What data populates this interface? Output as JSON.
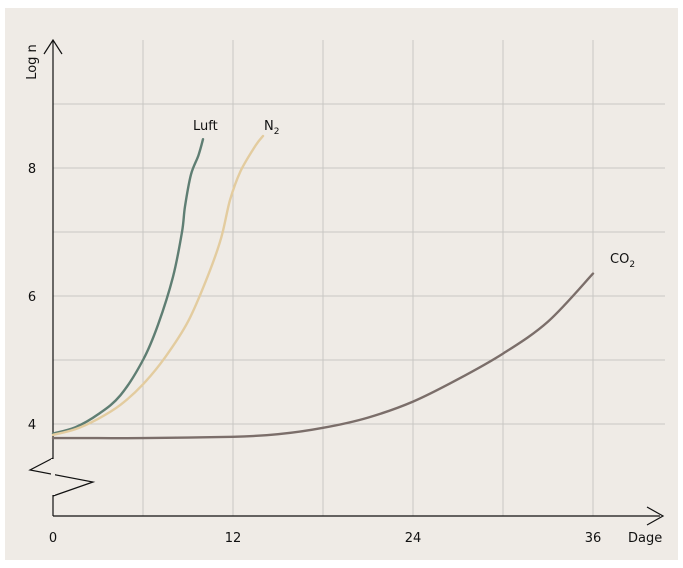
{
  "chart_data": {
    "type": "line",
    "title": "",
    "xlabel": "Dage",
    "ylabel": "Log n",
    "xlim": [
      0,
      40
    ],
    "ylim": [
      3.7,
      9.2
    ],
    "x_ticks": [
      0,
      12,
      24,
      36
    ],
    "y_ticks": [
      4,
      6,
      8
    ],
    "x_tick_labels": [
      "0",
      "12",
      "24",
      "36"
    ],
    "y_tick_labels": [
      "4",
      "6",
      "8"
    ],
    "y_axis_break": true,
    "grid": true,
    "background": "#efebe6",
    "grid_color": "#c9c7c4",
    "series": [
      {
        "name": "Luft",
        "label_main": "Luft",
        "label_sub": "",
        "color": "#5f7e73",
        "x": [
          0,
          1.5,
          3,
          4.5,
          6,
          7,
          8,
          8.6,
          8.8,
          9.2,
          9.7,
          10
        ],
        "y": [
          3.85,
          3.95,
          4.15,
          4.45,
          5.0,
          5.55,
          6.3,
          7.0,
          7.4,
          7.9,
          8.2,
          8.45
        ]
      },
      {
        "name": "N2",
        "label_main": "N",
        "label_sub": "2",
        "color": "#e3cc9f",
        "x": [
          0,
          1.5,
          3,
          4.5,
          6,
          7.5,
          9,
          10.3,
          11.2,
          11.8,
          12.5,
          13.5,
          14
        ],
        "y": [
          3.83,
          3.92,
          4.08,
          4.3,
          4.62,
          5.05,
          5.6,
          6.3,
          6.9,
          7.5,
          7.95,
          8.35,
          8.5
        ]
      },
      {
        "name": "CO2",
        "label_main": "CO",
        "label_sub": "2",
        "color": "#7b6e6a",
        "x": [
          0,
          3,
          6,
          12,
          15,
          18,
          21,
          24,
          27,
          30,
          33,
          36
        ],
        "y": [
          3.78,
          3.78,
          3.78,
          3.8,
          3.84,
          3.94,
          4.1,
          4.35,
          4.7,
          5.1,
          5.6,
          6.35
        ]
      }
    ]
  }
}
